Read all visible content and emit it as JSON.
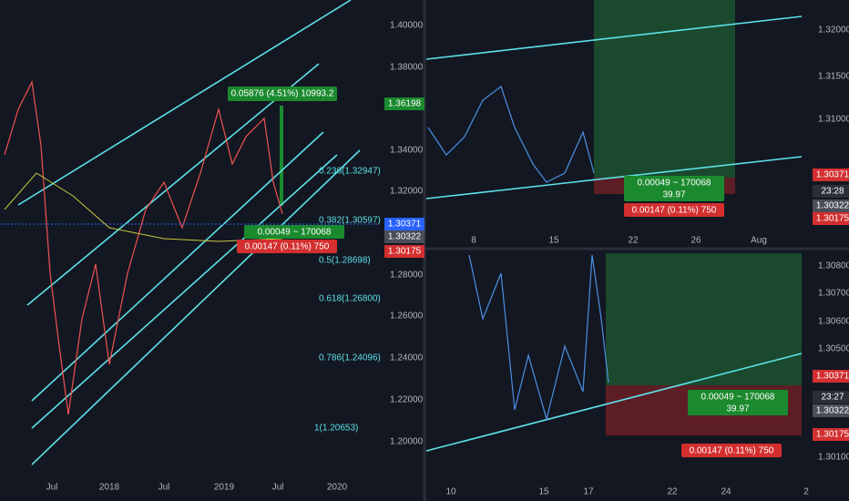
{
  "panels": [
    {
      "price_labels": [
        "1.40000",
        "1.38000",
        "1.34000",
        "1.32000",
        "1.28000",
        "1.26000",
        "1.24000",
        "1.22000",
        "1.20000"
      ],
      "price_tags": [
        "1.36198",
        "1.30371",
        "1.30322",
        "1.30175"
      ],
      "time_labels": [
        "Jul",
        "2018",
        "Jul",
        "2019",
        "Jul",
        "2020"
      ],
      "fib_labels": [
        "0.236(1.32947)",
        "0.382(1.30597)",
        "0.5(1.28698)",
        "0.618(1.26800)",
        "0.786(1.24096)",
        "1(1.20653)"
      ],
      "gain_box": "0.05876 (4.51%) 10993.2",
      "target_box": "0.00049 ~ 170068",
      "stop_box": "0.00147 (0.11%) 750"
    },
    {
      "price_labels": [
        "1.32000",
        "1.31500",
        "1.31000"
      ],
      "price_tags": [
        "1.30371",
        "23:28",
        "1.30322",
        "1.30175"
      ],
      "time_labels": [
        "8",
        "15",
        "22",
        "26",
        "Aug"
      ],
      "target_box": "0.00049 ~ 170068",
      "target_ratio": "39.97",
      "stop_box": "0.00147 (0.11%) 750"
    },
    {
      "price_labels": [
        "1.30800",
        "1.30700",
        "1.30600",
        "1.30500",
        "1.30100"
      ],
      "price_tags": [
        "1.30371",
        "23:27",
        "1.30322",
        "1.30175"
      ],
      "time_labels": [
        "10",
        "15",
        "17",
        "22",
        "24",
        "2"
      ],
      "target_box": "0.00049 ~ 170068",
      "target_ratio": "39.97",
      "stop_box": "0.00147 (0.11%) 750"
    }
  ]
}
